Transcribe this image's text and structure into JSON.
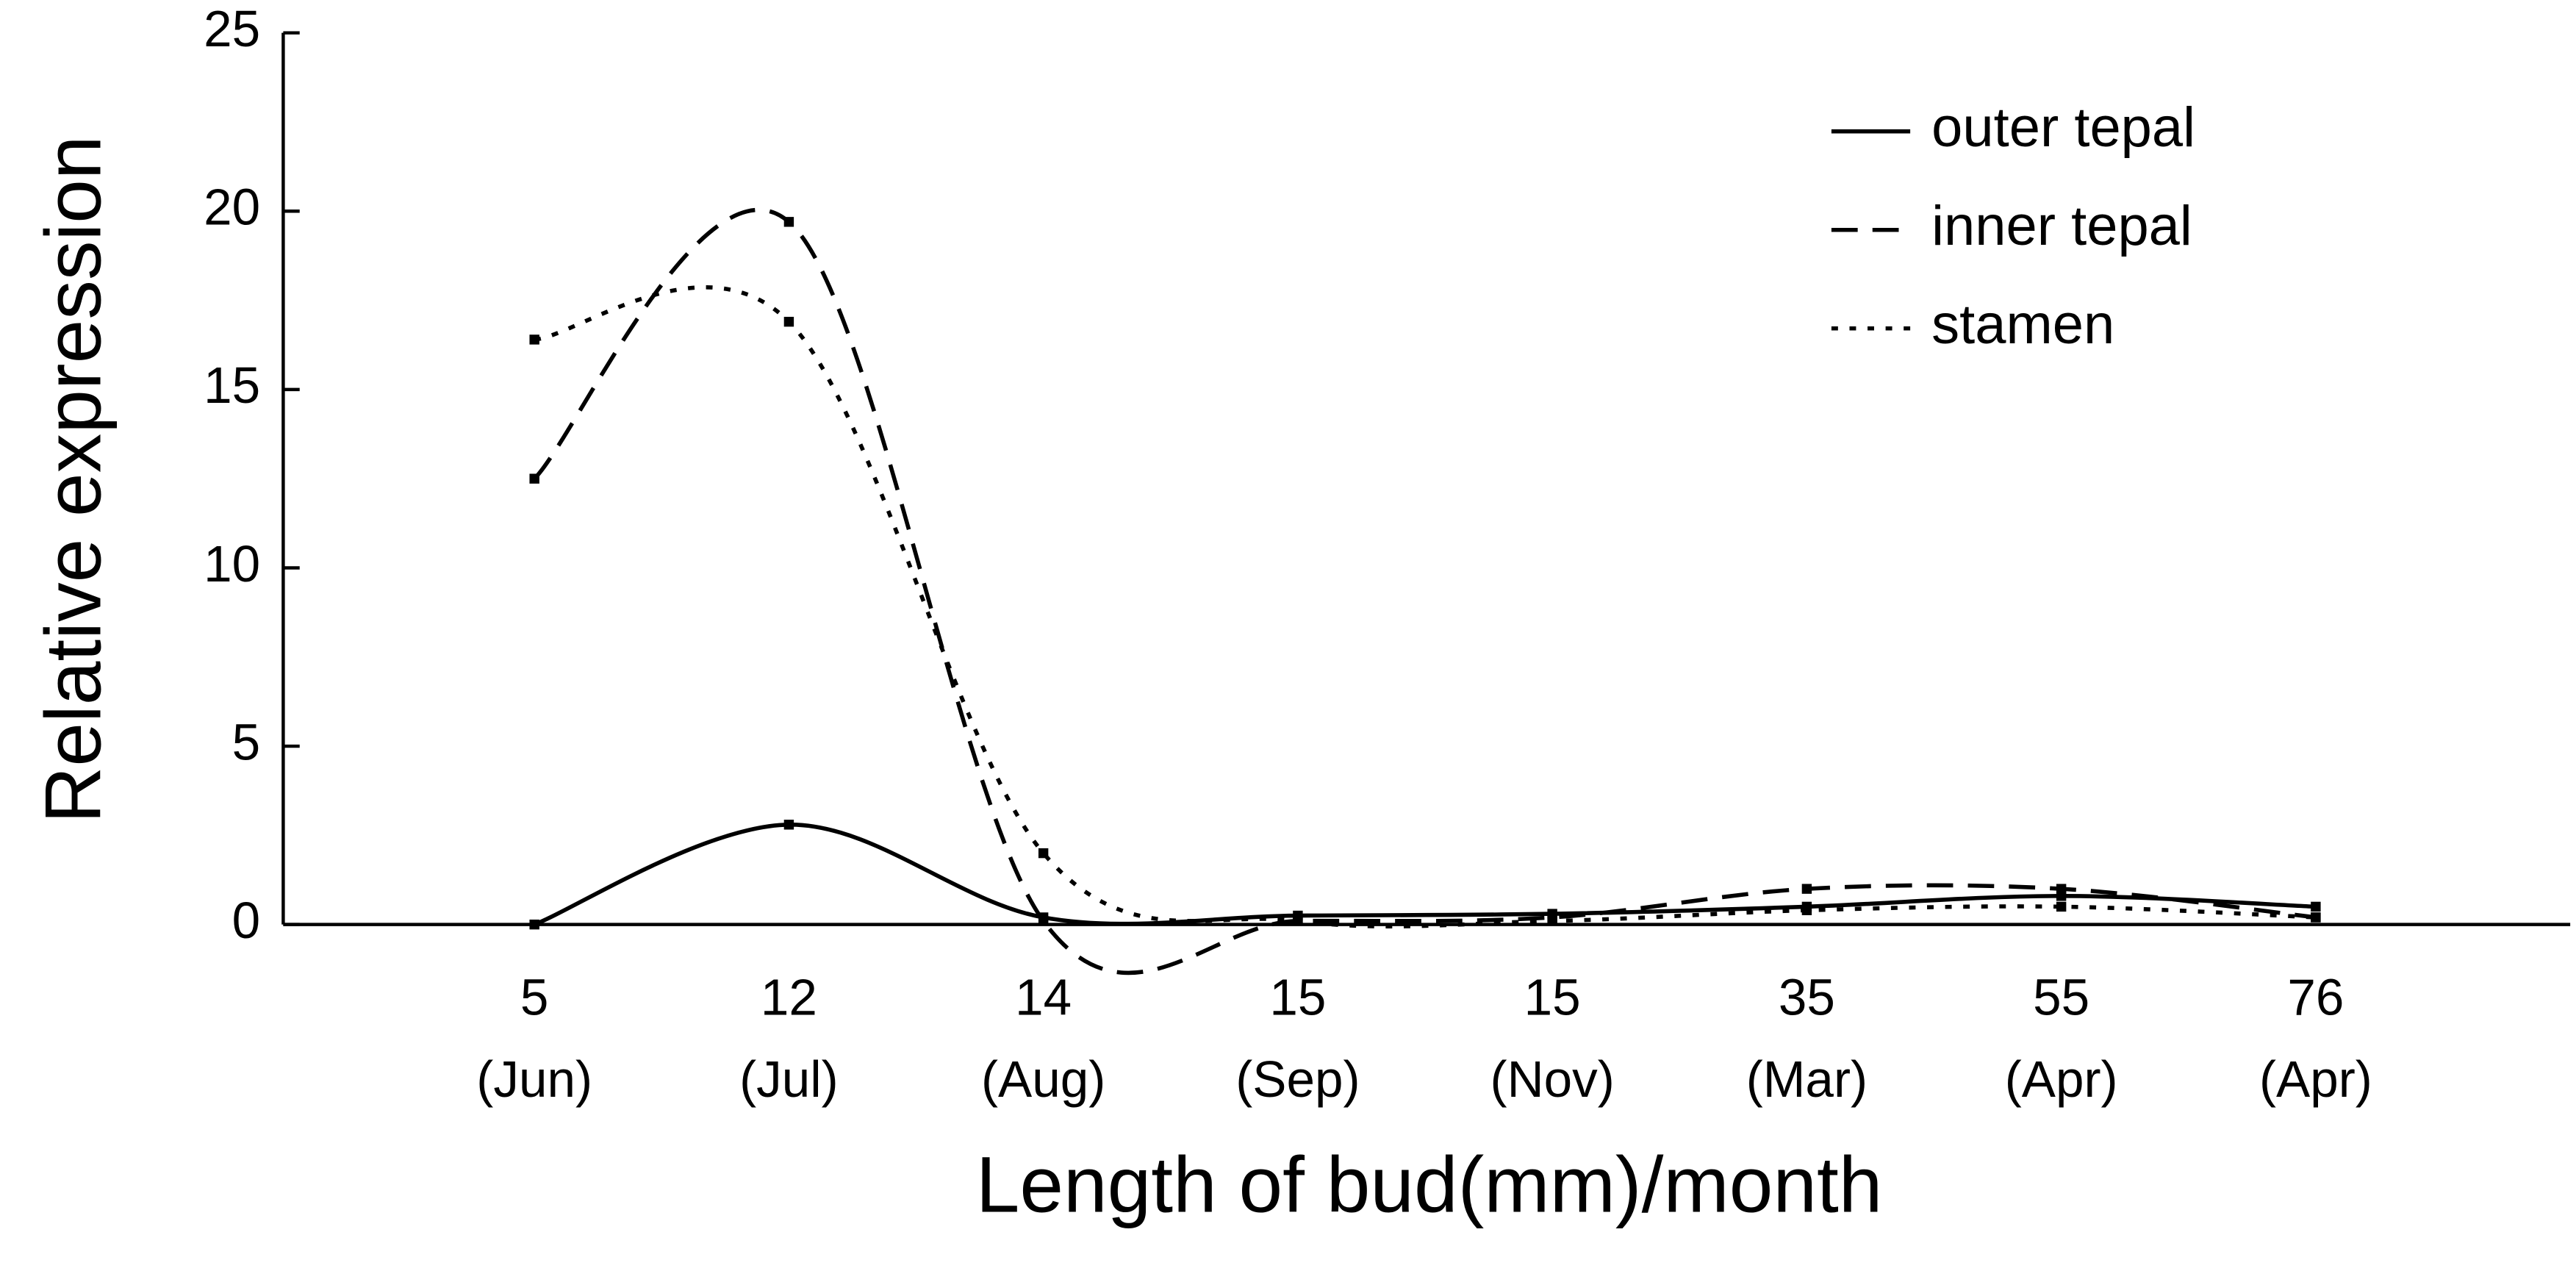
{
  "chart_data": {
    "type": "line",
    "xlabel": "Length of bud(mm)/month",
    "ylabel": "Relative expression",
    "categories": [
      [
        "5",
        "(Jun)"
      ],
      [
        "12",
        "(Jul)"
      ],
      [
        "14",
        "(Aug)"
      ],
      [
        "15",
        "(Sep)"
      ],
      [
        "15",
        "(Nov)"
      ],
      [
        "35",
        "(Mar)"
      ],
      [
        "55",
        "(Apr)"
      ],
      [
        "76",
        "(Apr)"
      ]
    ],
    "series": [
      {
        "name": "outer tepal",
        "color": "#000000",
        "dash": "solid",
        "values": [
          0,
          2.8,
          0.2,
          0.25,
          0.3,
          0.5,
          0.8,
          0.5
        ]
      },
      {
        "name": "inner tepal",
        "color": "#000000",
        "dash": "dashed",
        "values": [
          12.5,
          19.7,
          0.1,
          0.1,
          0.2,
          1.0,
          1.0,
          0.2
        ]
      },
      {
        "name": "stamen",
        "color": "#000000",
        "dash": "dotted",
        "values": [
          16.4,
          16.9,
          2.0,
          0.1,
          0.1,
          0.4,
          0.5,
          0.2
        ]
      }
    ],
    "ylim": [
      0,
      25
    ],
    "yticks": [
      0,
      5,
      10,
      15,
      20,
      25
    ],
    "smooth": true,
    "legend": "upper right"
  }
}
